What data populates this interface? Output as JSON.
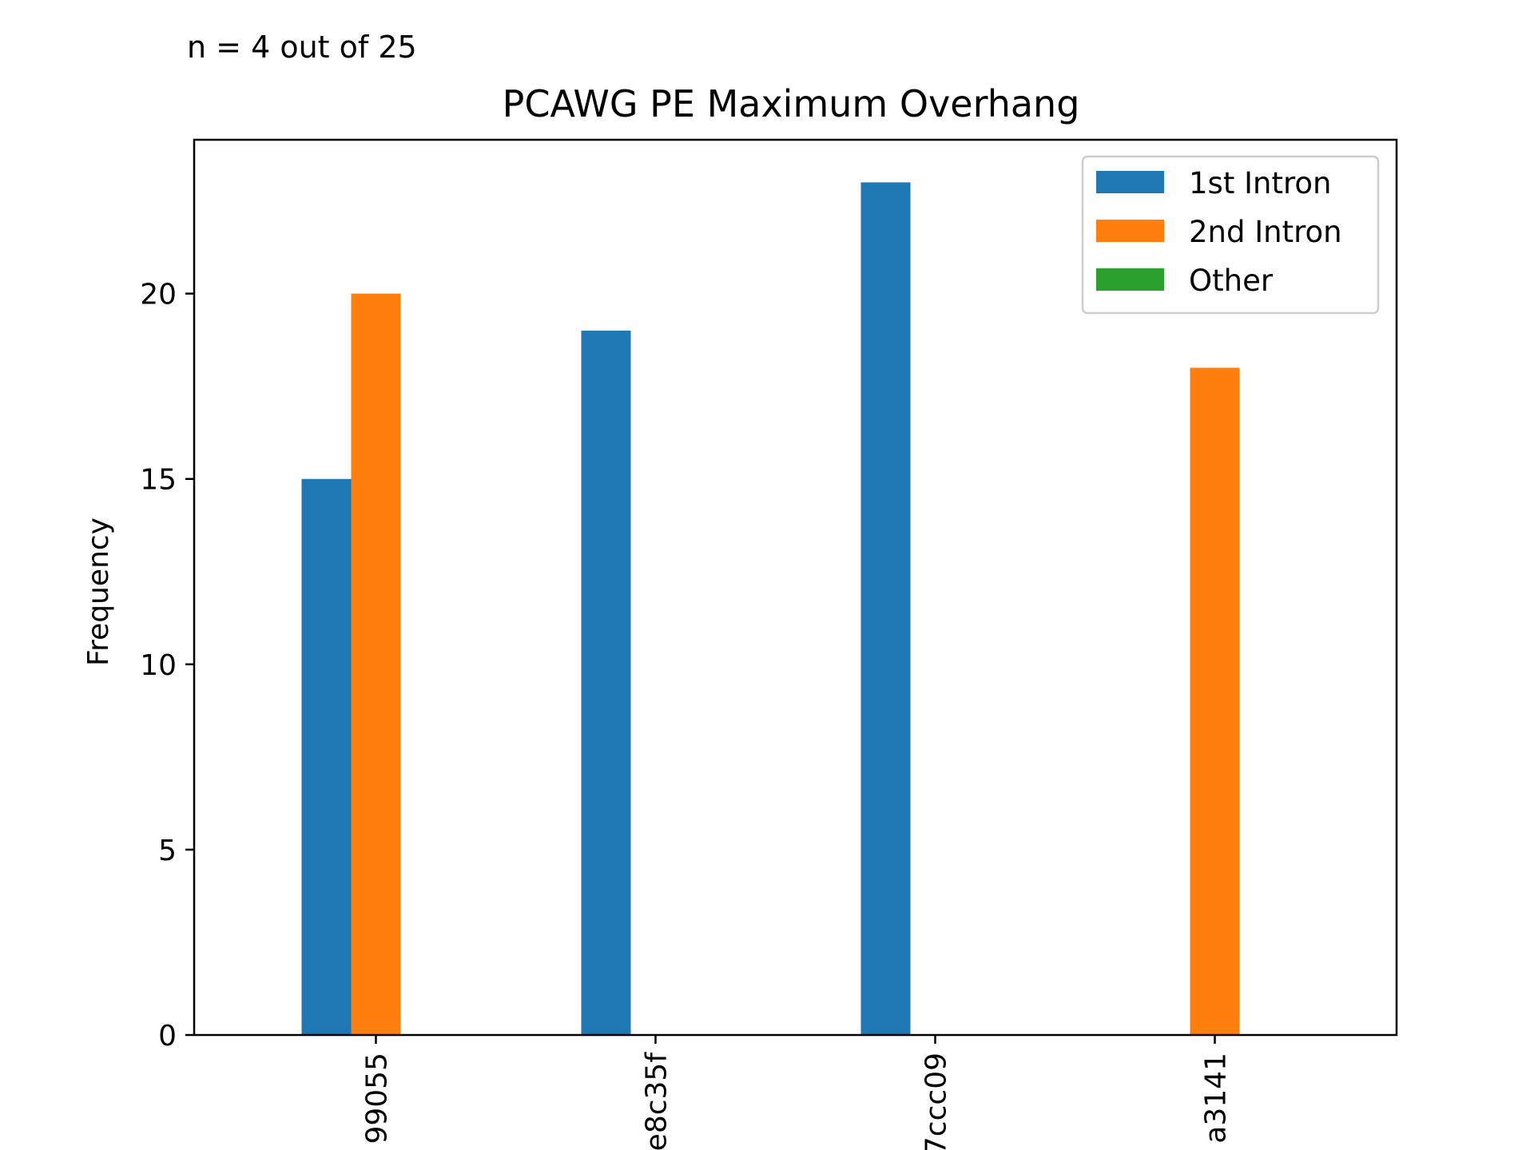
{
  "chart_data": {
    "type": "bar",
    "annotation": "n = 4 out of 25",
    "title": "PCAWG PE Maximum Overhang",
    "xlabel": "",
    "ylabel": "Frequency",
    "ylim": [
      0,
      24.15
    ],
    "yticks": [
      0,
      5,
      10,
      15,
      20
    ],
    "grid": false,
    "legend_position": "top-right",
    "categories": [
      "99055",
      "e8c35f",
      "7ccc09",
      "a3141"
    ],
    "series": [
      {
        "name": "1st Intron",
        "color": "#1f77b4",
        "values": [
          15,
          19,
          23,
          0
        ]
      },
      {
        "name": "2nd Intron",
        "color": "#ff7f0e",
        "values": [
          20,
          0,
          0,
          18
        ]
      },
      {
        "name": "Other",
        "color": "#2ca02c",
        "values": [
          0,
          0,
          0,
          0
        ]
      }
    ]
  }
}
